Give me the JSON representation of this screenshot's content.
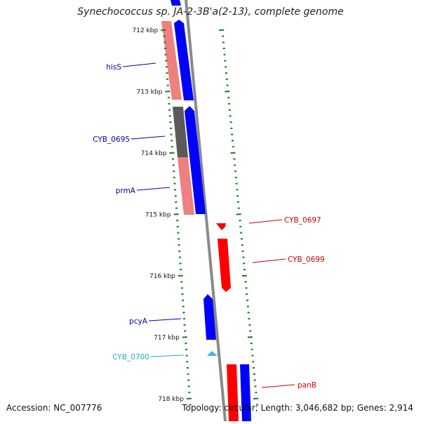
{
  "title": "Synechococcus sp. JA-2-3B'a(2-13), complete genome",
  "footer": {
    "accession": "Accession: NC_007776",
    "topology": "Topology: circular; Length: 3,046,682 bp; Genes: 2,914"
  },
  "colors": {
    "forward_gene": "#0000ff",
    "reverse_gene": "#ff0000",
    "forward_rna": "#33bbee",
    "reverse_gene_pale": "#ee8080",
    "operon": "#5a5a5a",
    "backbone": "#8a8a8a",
    "tick": "#1a7a1a"
  },
  "ticks": [
    {
      "label": "712 kbp"
    },
    {
      "label": "713 kbp"
    },
    {
      "label": "714 kbp"
    },
    {
      "label": "715 kbp"
    },
    {
      "label": "716 kbp"
    },
    {
      "label": "717 kbp"
    },
    {
      "label": "718 kbp"
    }
  ],
  "gene_labels": [
    {
      "name": "hisS",
      "side": "left",
      "color": "#0000aa"
    },
    {
      "name": "CYB_0695",
      "side": "left",
      "color": "#0000aa"
    },
    {
      "name": "prmA",
      "side": "left",
      "color": "#0000aa"
    },
    {
      "name": "pcyA",
      "side": "left",
      "color": "#0000aa"
    },
    {
      "name": "CYB_0700",
      "side": "left",
      "color": "#22aadd"
    },
    {
      "name": "CYB_0697",
      "side": "right",
      "color": "#cc0000"
    },
    {
      "name": "CYB_0699",
      "side": "right",
      "color": "#cc0000"
    },
    {
      "name": "panB",
      "side": "right",
      "color": "#cc0000"
    }
  ]
}
